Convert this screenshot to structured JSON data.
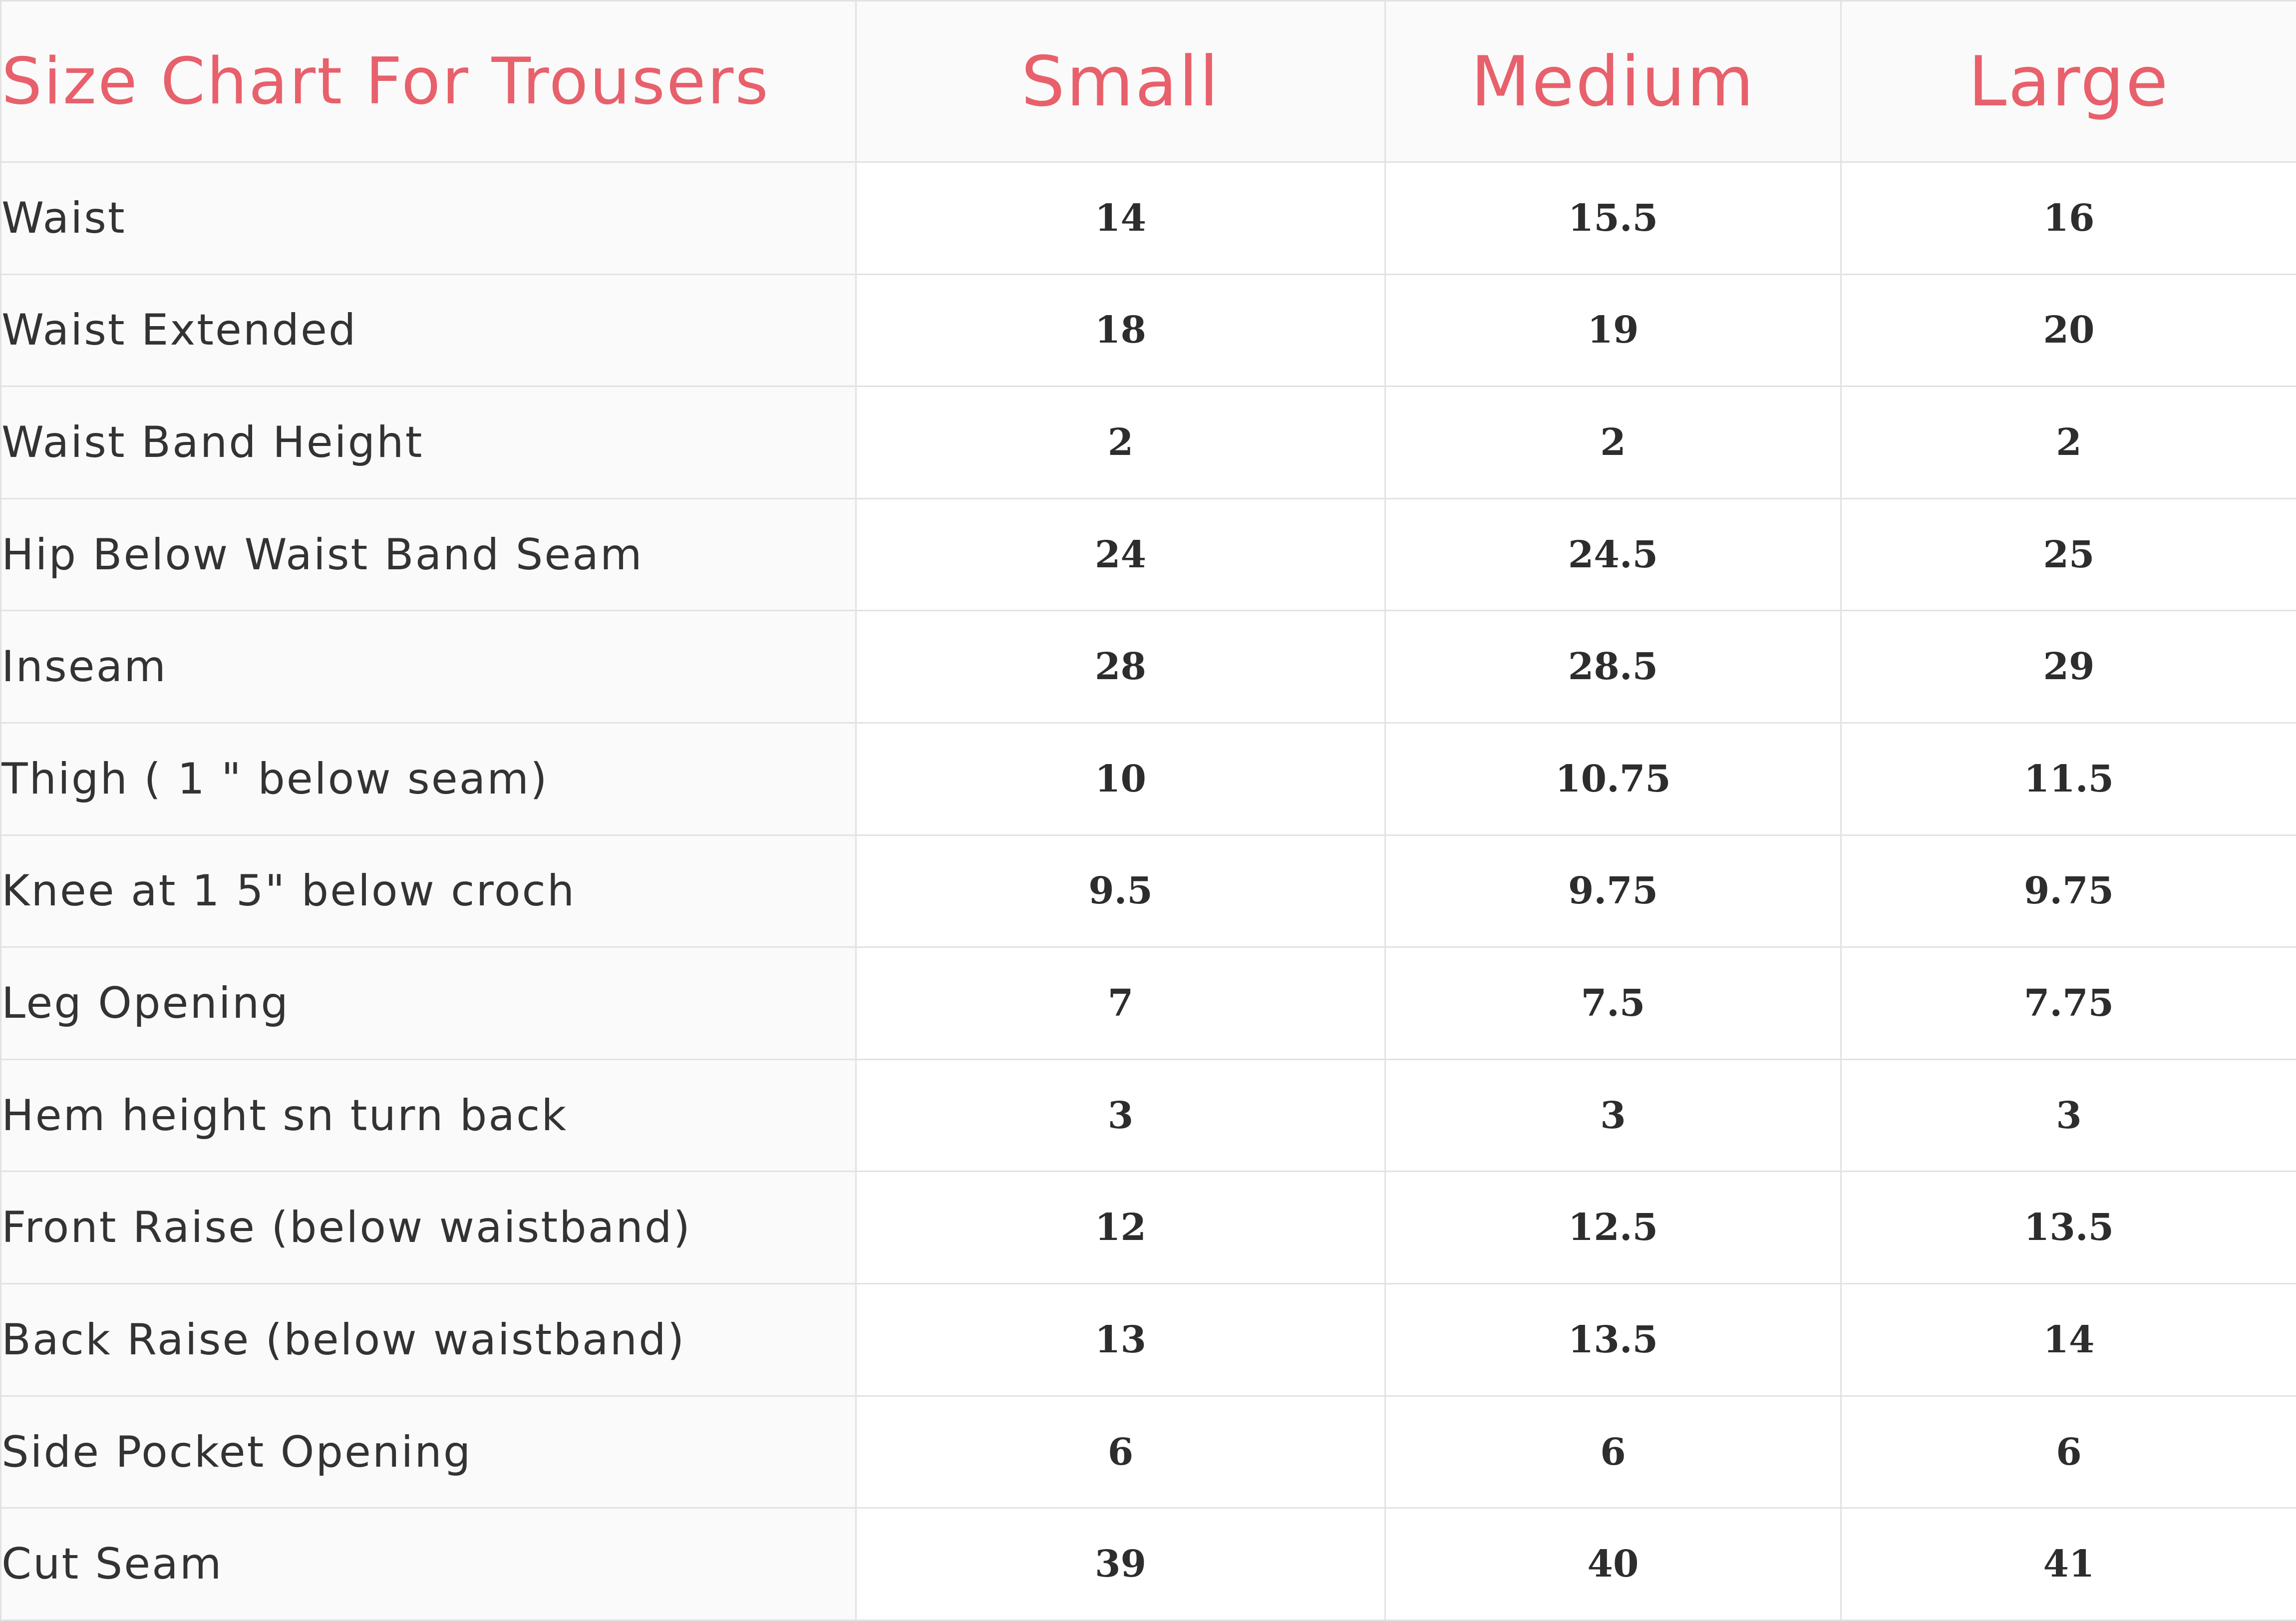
{
  "table": {
    "title": "Size Chart For Trousers",
    "sizes": [
      "Small",
      "Medium",
      "Large"
    ],
    "rows": [
      {
        "label": "Waist",
        "small": "14",
        "medium": "15.5",
        "large": "16"
      },
      {
        "label": "Waist Extended",
        "small": "18",
        "medium": "19",
        "large": "20"
      },
      {
        "label": "Waist Band Height",
        "small": "2",
        "medium": "2",
        "large": "2"
      },
      {
        "label": "Hip Below Waist Band Seam",
        "small": "24",
        "medium": "24.5",
        "large": "25"
      },
      {
        "label": "Inseam",
        "small": "28",
        "medium": "28.5",
        "large": "29"
      },
      {
        "label": "Thigh ( 1 \" below seam)",
        "small": "10",
        "medium": "10.75",
        "large": "11.5"
      },
      {
        "label": "Knee at  1 5\" below croch",
        "small": "9.5",
        "medium": "9.75",
        "large": "9.75"
      },
      {
        "label": "Leg Opening",
        "small": "7",
        "medium": "7.5",
        "large": "7.75"
      },
      {
        "label": "Hem height sn turn back",
        "small": "3",
        "medium": "3",
        "large": "3"
      },
      {
        "label": "Front Raise (below waistband)",
        "small": "12",
        "medium": "12.5",
        "large": "13.5"
      },
      {
        "label": "Back Raise (below waistband)",
        "small": "13",
        "medium": "13.5",
        "large": "14"
      },
      {
        "label": "Side Pocket Opening",
        "small": "6",
        "medium": "6",
        "large": "6"
      },
      {
        "label": "Cut Seam",
        "small": "39",
        "medium": "40",
        "large": "41"
      }
    ]
  }
}
